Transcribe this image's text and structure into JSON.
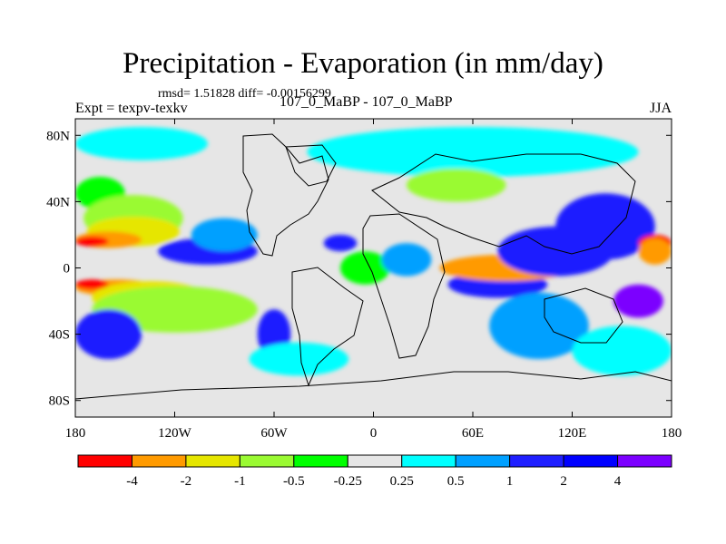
{
  "title": "Precipitation - Evaporation (in mm/day)",
  "subtitle": "rmsd= 1.51828 diff= -0.00156299",
  "left_label": "Expt = texpv-texkv",
  "center_label": "107_0_MaBP - 107_0_MaBP",
  "right_label": "JJA",
  "map": {
    "projection": "cylindrical-equidistant",
    "lon_range": [
      -180,
      180
    ],
    "lat_range": [
      -90,
      90
    ],
    "x_ticks": [
      {
        "value": -180,
        "label": "180"
      },
      {
        "value": -120,
        "label": "120W"
      },
      {
        "value": -60,
        "label": "60W"
      },
      {
        "value": 0,
        "label": "0"
      },
      {
        "value": 60,
        "label": "60E"
      },
      {
        "value": 120,
        "label": "120E"
      },
      {
        "value": 180,
        "label": "180"
      }
    ],
    "y_ticks": [
      {
        "value": 80,
        "label": "80N"
      },
      {
        "value": 40,
        "label": "40N"
      },
      {
        "value": 0,
        "label": "0"
      },
      {
        "value": -40,
        "label": "40S"
      },
      {
        "value": -80,
        "label": "80S"
      }
    ],
    "background_color": "#e6e6e6",
    "features": [
      {
        "color": "#00ff00",
        "lon": -165,
        "lat": 45,
        "rx": 15,
        "ry": 10
      },
      {
        "color": "#9afa32",
        "lon": -145,
        "lat": 30,
        "rx": 30,
        "ry": 14
      },
      {
        "color": "#e6e600",
        "lon": -145,
        "lat": 22,
        "rx": 28,
        "ry": 9
      },
      {
        "color": "#ff9a00",
        "lon": -160,
        "lat": 17,
        "rx": 20,
        "ry": 5
      },
      {
        "color": "#ff0000",
        "lon": -170,
        "lat": 16,
        "rx": 10,
        "ry": 3
      },
      {
        "color": "#1f1fff",
        "lon": -100,
        "lat": 10,
        "rx": 30,
        "ry": 8
      },
      {
        "color": "#00a0ff",
        "lon": -90,
        "lat": 20,
        "rx": 20,
        "ry": 10
      },
      {
        "color": "#ff9a00",
        "lon": -155,
        "lat": -12,
        "rx": 25,
        "ry": 5
      },
      {
        "color": "#ff0000",
        "lon": -170,
        "lat": -10,
        "rx": 10,
        "ry": 3
      },
      {
        "color": "#e6e600",
        "lon": -135,
        "lat": -18,
        "rx": 35,
        "ry": 10
      },
      {
        "color": "#9afa32",
        "lon": -120,
        "lat": -25,
        "rx": 50,
        "ry": 14
      },
      {
        "color": "#1f1fff",
        "lon": -160,
        "lat": -40,
        "rx": 20,
        "ry": 15
      },
      {
        "color": "#1f1fff",
        "lon": 75,
        "lat": -10,
        "rx": 30,
        "ry": 8
      },
      {
        "color": "#00a0ff",
        "lon": 100,
        "lat": -35,
        "rx": 30,
        "ry": 20
      },
      {
        "color": "#ff0000",
        "lon": 65,
        "lat": 0,
        "rx": 25,
        "ry": 5
      },
      {
        "color": "#ff9a00",
        "lon": 80,
        "lat": 0,
        "rx": 40,
        "ry": 8
      },
      {
        "color": "#1f1fff",
        "lon": 110,
        "lat": 10,
        "rx": 35,
        "ry": 15
      },
      {
        "color": "#1f1fff",
        "lon": 140,
        "lat": 25,
        "rx": 30,
        "ry": 20
      },
      {
        "color": "#ff0000",
        "lon": 170,
        "lat": 15,
        "rx": 10,
        "ry": 5
      },
      {
        "color": "#ff9a00",
        "lon": 170,
        "lat": 10,
        "rx": 10,
        "ry": 8
      },
      {
        "color": "#00ffff",
        "lon": -140,
        "lat": 75,
        "rx": 40,
        "ry": 10
      },
      {
        "color": "#00ffff",
        "lon": 60,
        "lat": 70,
        "rx": 100,
        "ry": 15
      },
      {
        "color": "#9afa32",
        "lon": 50,
        "lat": 50,
        "rx": 30,
        "ry": 10
      },
      {
        "color": "#00ff00",
        "lon": -5,
        "lat": 0,
        "rx": 15,
        "ry": 10
      },
      {
        "color": "#00a0ff",
        "lon": 20,
        "lat": 5,
        "rx": 15,
        "ry": 10
      },
      {
        "color": "#1f1fff",
        "lon": -20,
        "lat": 15,
        "rx": 10,
        "ry": 5
      },
      {
        "color": "#1f1fff",
        "lon": -60,
        "lat": -40,
        "rx": 10,
        "ry": 15
      },
      {
        "color": "#00ffff",
        "lon": -45,
        "lat": -55,
        "rx": 30,
        "ry": 10
      },
      {
        "color": "#00ffff",
        "lon": 150,
        "lat": -50,
        "rx": 30,
        "ry": 15
      },
      {
        "color": "#7c00ff",
        "lon": 160,
        "lat": -20,
        "rx": 15,
        "ry": 10
      }
    ]
  },
  "colorbar": {
    "colors": [
      "#ff0000",
      "#ff9a00",
      "#e6e600",
      "#9afa32",
      "#00ff00",
      "#e6e6e6",
      "#00ffff",
      "#00a0ff",
      "#1f1fff",
      "#0000ff",
      "#7c00ff"
    ],
    "labels": [
      "-4",
      "-2",
      "-1",
      "-0.5",
      "-0.25",
      "0.25",
      "0.5",
      "1",
      "2",
      "4"
    ]
  }
}
